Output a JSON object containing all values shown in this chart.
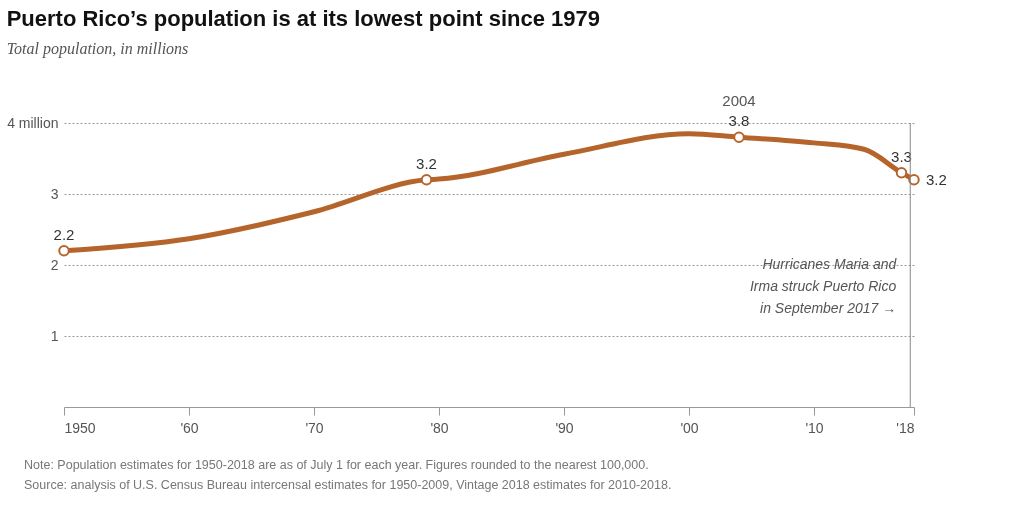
{
  "chart_data": {
    "type": "line",
    "title": "Puerto Rico’s population is at its lowest point since 1979",
    "subtitle": "Total population, in millions",
    "x": [
      1950,
      1960,
      1970,
      1979,
      1980,
      1990,
      2000,
      2004,
      2010,
      2014,
      2017,
      2018
    ],
    "series": [
      {
        "color": "#b5652b",
        "values": [
          2.2,
          2.37,
          2.75,
          3.2,
          3.21,
          3.56,
          3.85,
          3.8,
          3.72,
          3.63,
          3.3,
          3.2
        ],
        "value_labels": [
          "2.2",
          null,
          null,
          "3.2",
          null,
          null,
          null,
          "3.8",
          null,
          null,
          "3.3",
          "3.2"
        ]
      }
    ],
    "xlim": [
      1950,
      2018
    ],
    "xticks": [
      1950,
      {
        "value": 1960,
        "label": "'60"
      },
      {
        "value": 1970,
        "label": "'70"
      },
      {
        "value": 1980,
        "label": "'80"
      },
      {
        "value": 1990,
        "label": "'90"
      },
      {
        "value": 2000,
        "label": "'00"
      },
      {
        "value": 2010,
        "label": "'10"
      },
      {
        "value": 2018,
        "label": "'18"
      }
    ],
    "ylim": [
      0,
      4
    ],
    "yticks": [
      {
        "value": 1,
        "label": "1"
      },
      {
        "value": 2,
        "label": "2"
      },
      {
        "value": 3,
        "label": "3"
      },
      {
        "value": 4,
        "label": "4 million"
      }
    ],
    "grid": "y",
    "line_style": "solid",
    "ref_lines": [
      {
        "axis": "x",
        "value": 2017.7,
        "label": "Hurricanes Maria and\nIrma struck Puerto Rico\nin September 2017 →"
      }
    ],
    "annotations": [
      {
        "text": "2004",
        "x": 2004,
        "y": 3.8
      },
      "Note: Population estimates for 1950-2018 are as of July 1 for each year. Figures rounded to the nearest 100,000.",
      "Source: analysis of U.S. Census Bureau intercensal estimates for 1950-2009, Vintage 2018 estimates for 2010-2018."
    ]
  }
}
